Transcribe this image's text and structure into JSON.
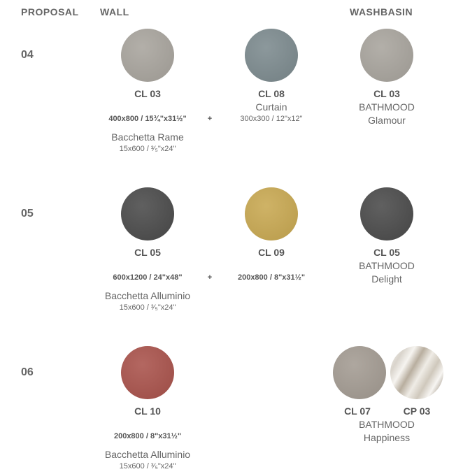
{
  "header": {
    "proposal": "PROPOSAL",
    "wall": "WALL",
    "washbasin": "WASHBASIN"
  },
  "rows": [
    {
      "number": "04",
      "wall": [
        {
          "code": "CL 03",
          "size": "400x800 / 15¾\"x31½\""
        },
        {
          "code": "CL 08",
          "name": "Curtain",
          "size": "300x300 / 12\"x12\""
        }
      ],
      "joiner": "+",
      "trim": {
        "name": "Bacchetta Rame",
        "size": "15x600 / ³⁄₅\"x24\""
      },
      "washbasin": {
        "codes": [
          "CL 03"
        ],
        "line": "BATHMOOD",
        "finish": "Glamour"
      }
    },
    {
      "number": "05",
      "wall": [
        {
          "code": "CL 05",
          "size": "600x1200 / 24\"x48\""
        },
        {
          "code": "CL 09",
          "size": "200x800 / 8\"x31½\""
        }
      ],
      "joiner": "+",
      "trim": {
        "name": "Bacchetta Alluminio",
        "size": "15x600 / ³⁄₅\"x24\""
      },
      "washbasin": {
        "codes": [
          "CL 05"
        ],
        "line": "BATHMOOD",
        "finish": "Delight"
      }
    },
    {
      "number": "06",
      "wall": [
        {
          "code": "CL 10",
          "size": "200x800 / 8\"x31½\""
        }
      ],
      "trim": {
        "name": "Bacchetta Alluminio",
        "size": "15x600 / ³⁄₅\"x24\""
      },
      "washbasin": {
        "codes": [
          "CL 07",
          "CP 03"
        ],
        "line": "BATHMOOD",
        "finish": "Happiness"
      }
    }
  ]
}
